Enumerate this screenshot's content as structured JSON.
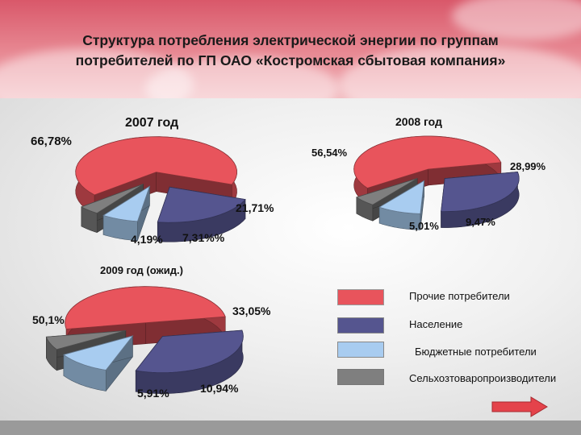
{
  "title": {
    "line1": "Структура потребления электрической энергии по группам",
    "line2": "потребителей по ГП ОАО «Костромская сбытовая компания»"
  },
  "colors": {
    "prochie": "#e8545c",
    "naselenie": "#55558f",
    "byudzhet": "#a8ccf0",
    "selkhoz": "#7f7f7f",
    "arrow": "#e4434b"
  },
  "chart_data": [
    {
      "type": "pie",
      "title": "2007 год",
      "categories": [
        "Прочие потребители",
        "Население",
        "Бюджетные потребители",
        "Сельхозтоваропроизводители"
      ],
      "values": [
        66.78,
        21.71,
        7.31,
        4.19
      ],
      "labels": [
        "66,78%",
        "21,71%",
        "7,31%%",
        "4,19%"
      ]
    },
    {
      "type": "pie",
      "title": "2008 год",
      "categories": [
        "Прочие потребители",
        "Население",
        "Бюджетные потребители",
        "Сельхозтоваропроизводители"
      ],
      "values": [
        56.54,
        28.99,
        9.47,
        5.01
      ],
      "labels": [
        "56,54%",
        "28,99%",
        "9,47%",
        "5,01%"
      ]
    },
    {
      "type": "pie",
      "title": "2009 год (ожид.)",
      "categories": [
        "Прочие потребители",
        "Население",
        "Бюджетные потребители",
        "Сельхозтоваропроизводители"
      ],
      "values": [
        50.1,
        33.05,
        10.94,
        5.91
      ],
      "labels": [
        "50,1%",
        "33,05%",
        "10,94%",
        "5,91%"
      ]
    }
  ],
  "legend": [
    {
      "label": "Прочие потребители"
    },
    {
      "label": "Население"
    },
    {
      "label": "Бюджетные потребители"
    },
    {
      "label": "Сельхозтоваропроизводители"
    }
  ]
}
